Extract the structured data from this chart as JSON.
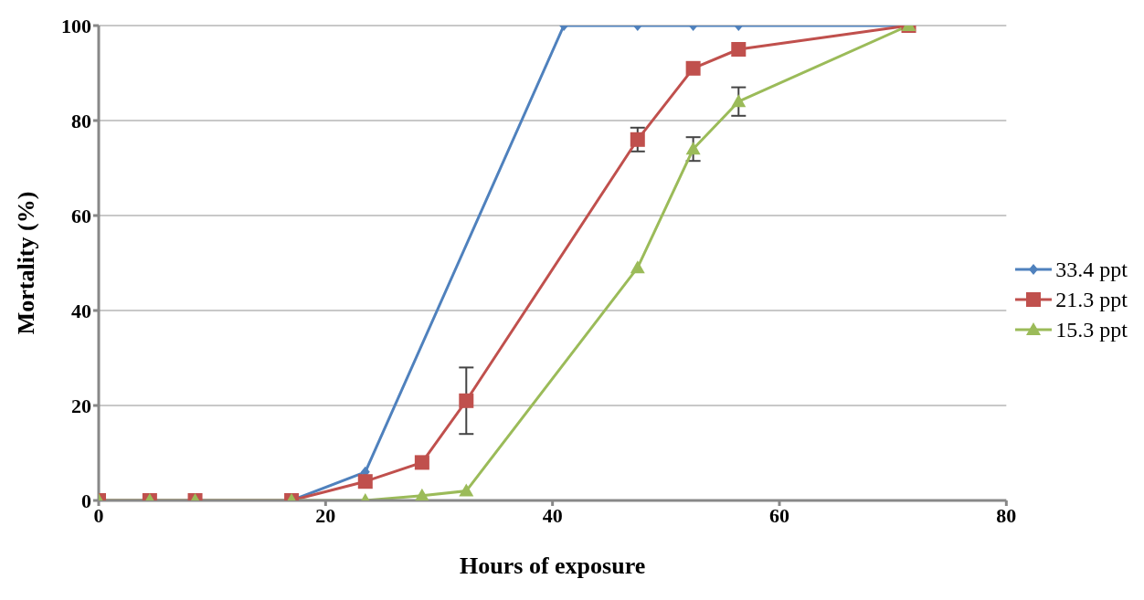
{
  "chart_data": {
    "type": "line",
    "xlabel": "Hours of exposure",
    "ylabel": "Mortality (%)",
    "xlim": [
      0,
      80
    ],
    "xticks": [
      0,
      20,
      40,
      60,
      80
    ],
    "ylim": [
      0,
      100
    ],
    "yticks": [
      0,
      20,
      40,
      60,
      80,
      100
    ],
    "grid": "y",
    "legend": "right",
    "series": [
      {
        "name": "33.4 ppt",
        "color": "#4f81bd",
        "marker": "diamond",
        "x": [
          17,
          23.5,
          41,
          47.5,
          52.4,
          56.4,
          71.4
        ],
        "values": [
          0,
          6,
          100,
          100,
          100,
          100,
          100
        ]
      },
      {
        "name": "21.3 ppt",
        "color": "#c0504d",
        "marker": "square",
        "x": [
          0,
          4.5,
          8.5,
          17,
          23.5,
          28.5,
          32.4,
          47.5,
          52.4,
          56.4,
          71.4
        ],
        "values": [
          0,
          0,
          0,
          0,
          4,
          8,
          21,
          76,
          91,
          95,
          100
        ],
        "errors": [
          null,
          null,
          null,
          null,
          null,
          null,
          7,
          2.5,
          null,
          null,
          null
        ]
      },
      {
        "name": "15.3 ppt",
        "color": "#9bbb59",
        "marker": "triangle",
        "x": [
          0,
          4.5,
          8.5,
          17,
          23.5,
          28.5,
          32.4,
          47.5,
          52.4,
          56.4,
          71.4
        ],
        "values": [
          0,
          0,
          0,
          0,
          0,
          1,
          2,
          49,
          74,
          84,
          100
        ],
        "errors": [
          null,
          null,
          null,
          null,
          null,
          null,
          null,
          null,
          2.5,
          3,
          null
        ]
      }
    ]
  }
}
